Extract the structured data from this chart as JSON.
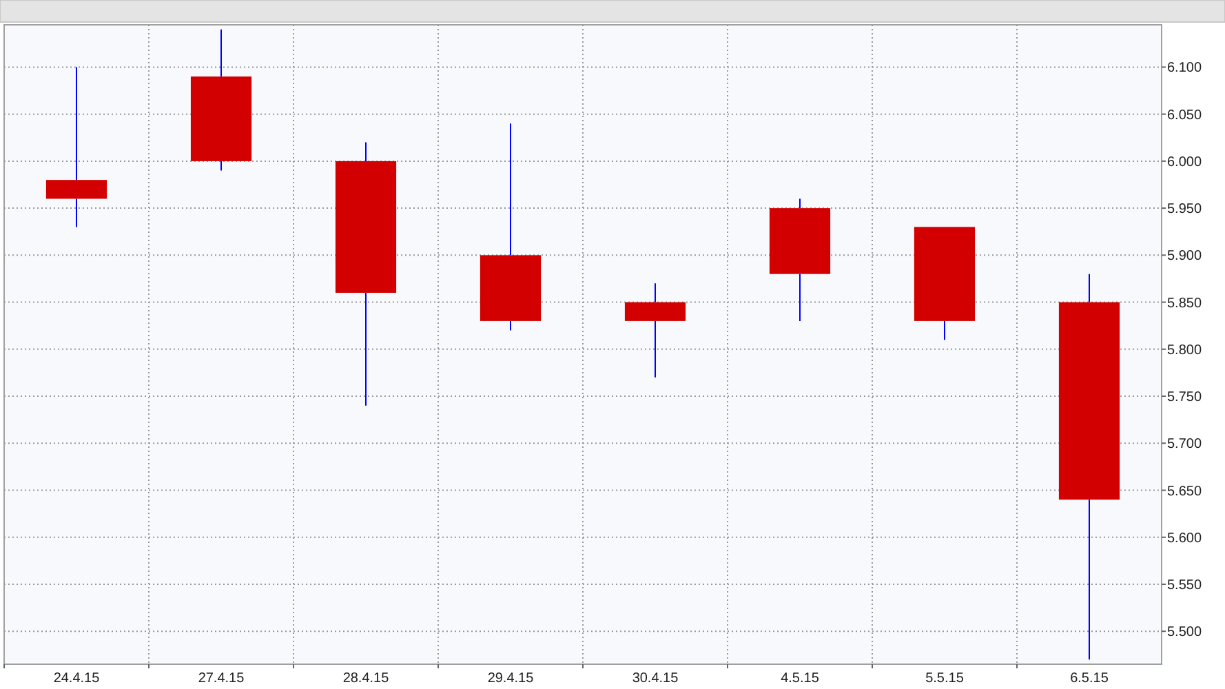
{
  "chart_data": {
    "type": "candlestick",
    "categories": [
      "24.4.15",
      "27.4.15",
      "28.4.15",
      "29.4.15",
      "30.4.15",
      "4.5.15",
      "5.5.15",
      "6.5.15"
    ],
    "ohlc": [
      [
        5.98,
        6.1,
        5.93,
        5.96
      ],
      [
        6.09,
        6.14,
        5.99,
        6.0
      ],
      [
        6.0,
        6.02,
        5.74,
        5.86
      ],
      [
        5.9,
        6.04,
        5.82,
        5.83
      ],
      [
        5.85,
        5.87,
        5.77,
        5.83
      ],
      [
        5.95,
        5.96,
        5.83,
        5.88
      ],
      [
        5.93,
        5.93,
        5.81,
        5.83
      ],
      [
        5.85,
        5.88,
        5.47,
        5.64
      ]
    ],
    "color": "#d20000",
    "ylim": [
      5.465,
      6.145
    ],
    "yticks": [
      {
        "value": 5.5,
        "label": "5.500"
      },
      {
        "value": 5.55,
        "label": "5.550"
      },
      {
        "value": 5.6,
        "label": "5.600"
      },
      {
        "value": 5.65,
        "label": "5.650"
      },
      {
        "value": 5.7,
        "label": "5.700"
      },
      {
        "value": 5.75,
        "label": "5.750"
      },
      {
        "value": 5.8,
        "label": "5.800"
      },
      {
        "value": 5.85,
        "label": "5.850"
      },
      {
        "value": 5.9,
        "label": "5.900"
      },
      {
        "value": 5.95,
        "label": "5.950"
      },
      {
        "value": 6.0,
        "label": "6.000"
      },
      {
        "value": 6.05,
        "label": "6.050"
      },
      {
        "value": 6.1,
        "label": "6.100"
      }
    ],
    "grid": true
  }
}
